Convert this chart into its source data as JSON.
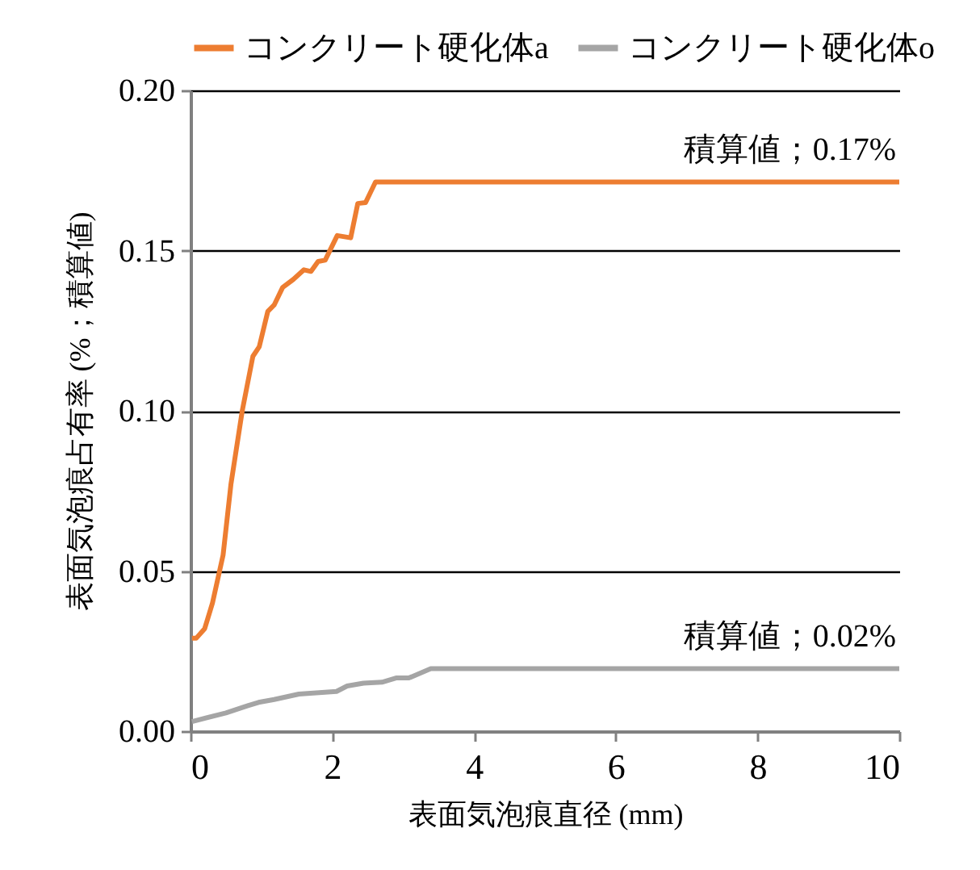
{
  "chart_data": {
    "type": "line",
    "xlabel": "表面気泡痕直径 (mm)",
    "ylabel": "表面気泡痕占有率 (%；積算値)",
    "xlim": [
      0,
      10
    ],
    "xticks": [
      0,
      2,
      4,
      6,
      8,
      10
    ],
    "ylim": [
      0,
      0.2
    ],
    "yticks": [
      {
        "value": 0,
        "label": "0.00"
      },
      {
        "value": 0.05,
        "label": "0.05"
      },
      {
        "value": 0.1,
        "label": "0.10"
      },
      {
        "value": 0.15,
        "label": "0.15"
      },
      {
        "value": 0.2,
        "label": "0.20"
      }
    ],
    "grid": "y",
    "legend": "top",
    "line_style": "solid",
    "marker": "none",
    "series": [
      {
        "name": "コンクリート硬化体a",
        "color": "#ed7d31",
        "x": [
          0.02,
          0.08,
          0.2,
          0.31,
          0.46,
          0.57,
          0.73,
          0.88,
          0.97,
          1.09,
          1.18,
          1.3,
          1.45,
          1.6,
          1.7,
          1.8,
          1.9,
          2.07,
          2.26,
          2.36,
          2.47,
          2.61,
          10
        ],
        "values": [
          0.029,
          0.029,
          0.032,
          0.04,
          0.055,
          0.077,
          0.1,
          0.117,
          0.12,
          0.131,
          0.133,
          0.1385,
          0.141,
          0.144,
          0.1435,
          0.1466,
          0.147,
          0.1547,
          0.154,
          0.1647,
          0.165,
          0.1714,
          0.1714
        ]
      },
      {
        "name": "コンクリート硬化体o",
        "color": "#a5a5a5",
        "x": [
          0.02,
          0.5,
          0.8,
          0.96,
          1.18,
          1.53,
          2.06,
          2.21,
          2.44,
          2.7,
          2.9,
          3.08,
          3.39,
          10
        ],
        "values": [
          0.003,
          0.0057,
          0.0079,
          0.009,
          0.0099,
          0.0116,
          0.0124,
          0.0141,
          0.015,
          0.0153,
          0.0166,
          0.0166,
          0.0195,
          0.0195
        ]
      }
    ],
    "annotations": [
      {
        "text": "積算値；0.17%",
        "x": 10,
        "y": 0.1714
      },
      {
        "text": "積算値；0.02%",
        "x": 10,
        "y": 0.0195
      }
    ]
  }
}
